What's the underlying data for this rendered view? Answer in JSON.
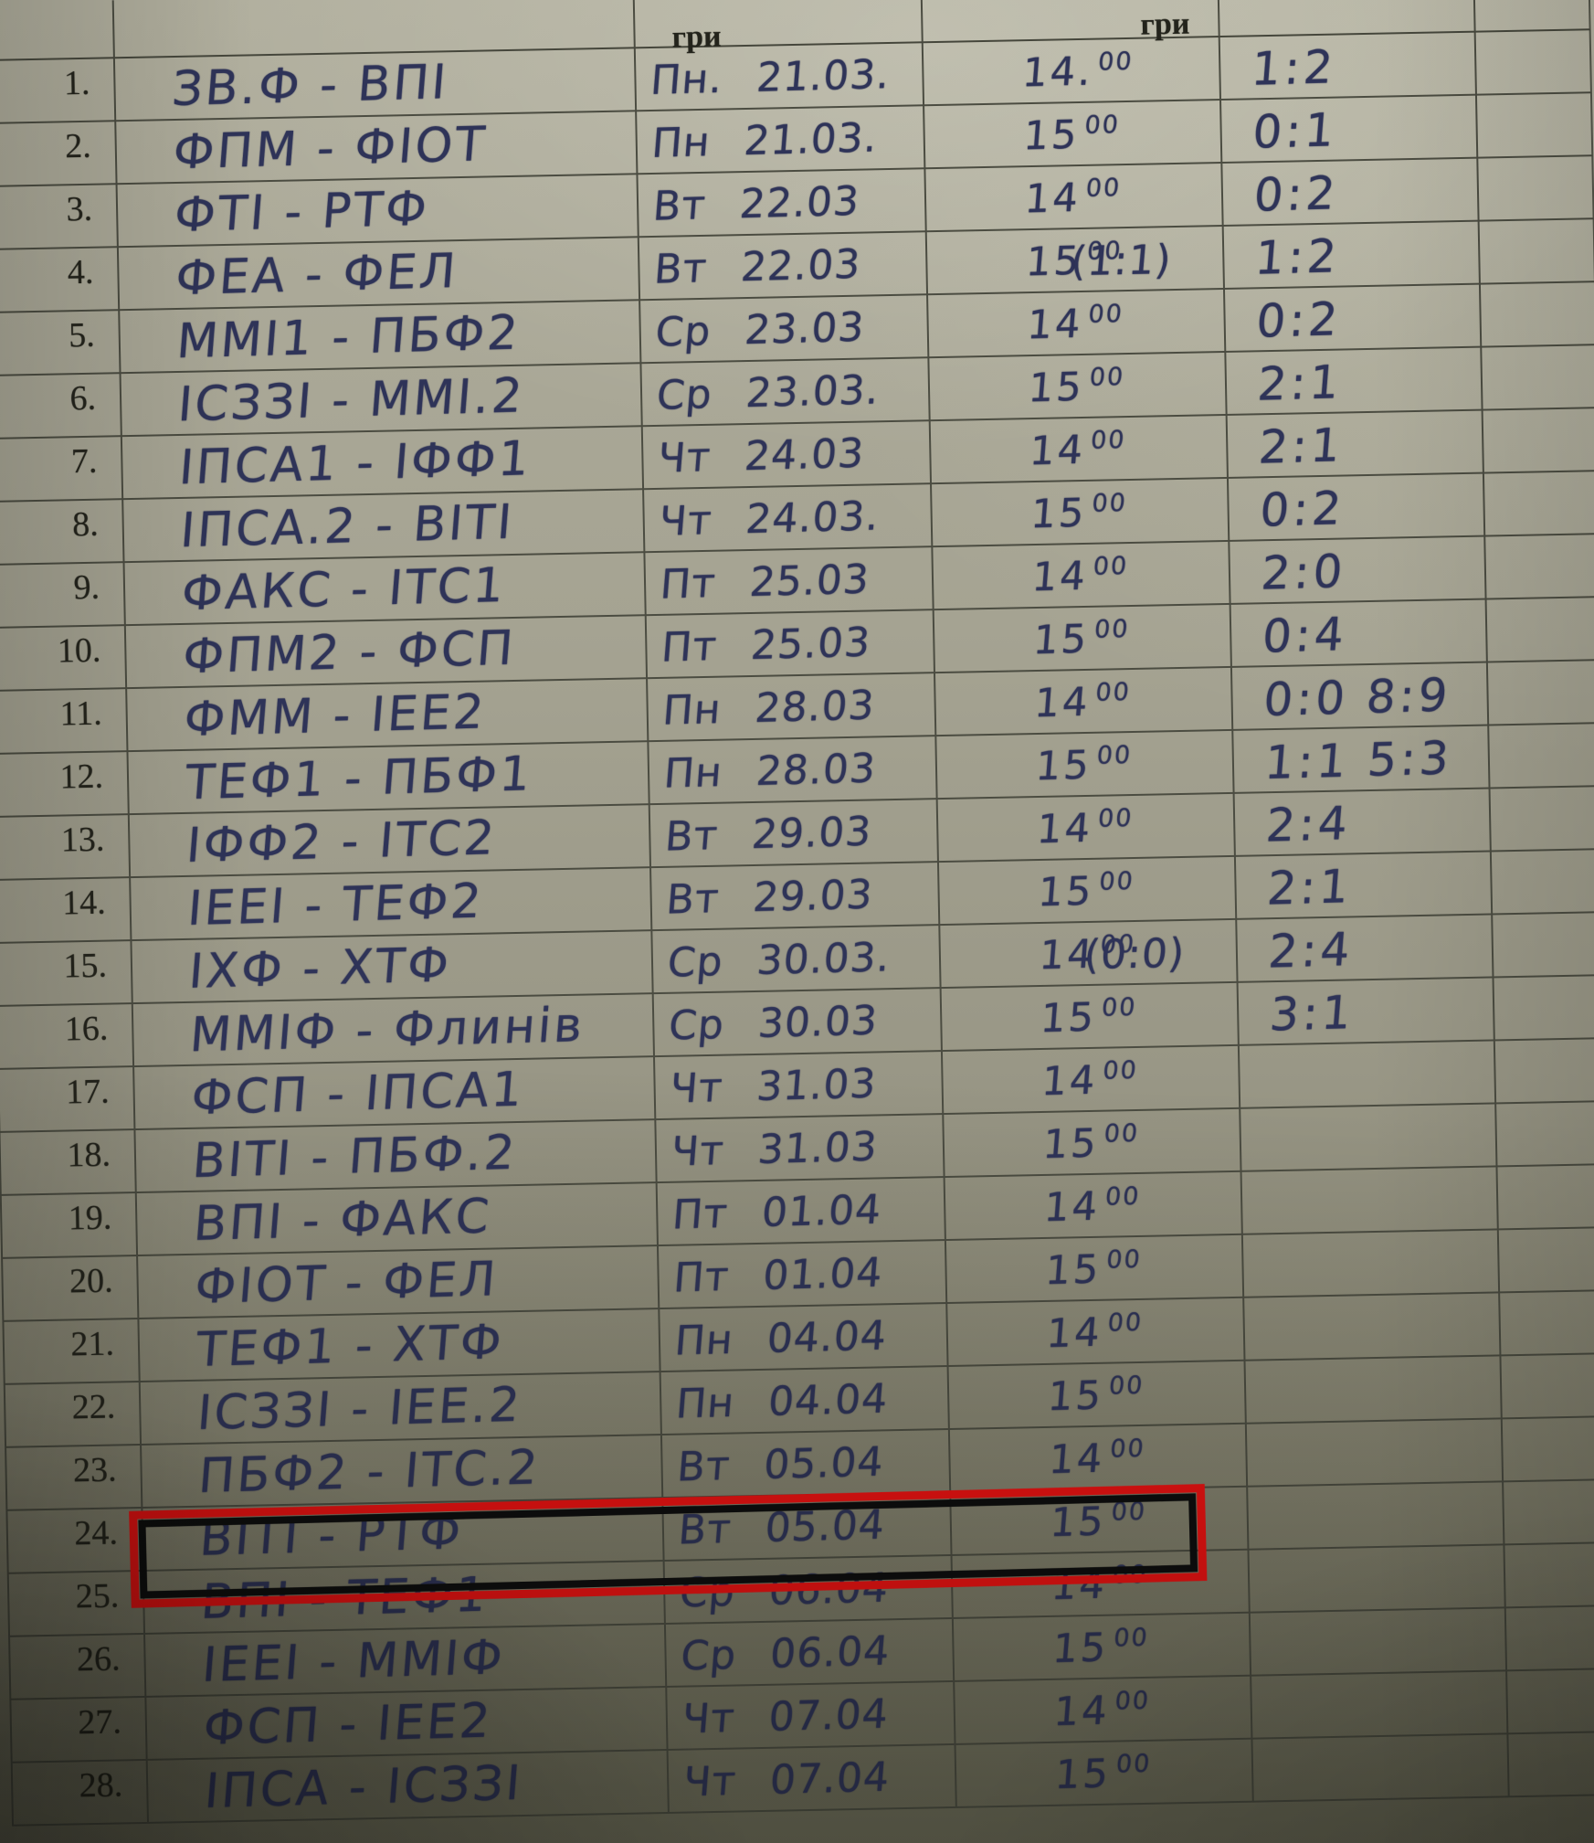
{
  "document_type": "handwritten-match-schedule-photo",
  "colors": {
    "paper": "#a5a392",
    "grid_line": "#4b4c41",
    "ink_blue": "#2e3358",
    "printed_text": "#24241c",
    "highlight_outer": "#ec1111",
    "highlight_inner": "#0d0d0d"
  },
  "table": {
    "header": {
      "date_col": "гри",
      "time_col": "гри"
    },
    "highlight": {
      "row_number": "24.",
      "style": "red outer box with black inner box"
    },
    "rows": [
      {
        "num": "1.",
        "teams": "ЗВ.Ф - ВПІ",
        "day_date": "Пн. 21.03.",
        "time": "14.",
        "time_sup": "00",
        "score": "1:2"
      },
      {
        "num": "2.",
        "teams": "ФПМ - ФІОТ",
        "day_date": "Пн 21.03.",
        "time": "15",
        "time_sup": "00",
        "score": "0:1"
      },
      {
        "num": "3.",
        "teams": "ФТІ - РТФ",
        "day_date": "Вт 22.03",
        "time": "14",
        "time_sup": "00",
        "score": "0:2"
      },
      {
        "num": "4.",
        "teams": "ФЕА - ФЕЛ",
        "day_date": "Вт 22.03",
        "time": "15",
        "time_sup": "00",
        "score_pre": "(1:1)",
        "score": "1:2"
      },
      {
        "num": "5.",
        "teams": "ММІ1 - ПБФ2",
        "day_date": "Ср 23.03",
        "time": "14",
        "time_sup": "00",
        "score": "0:2"
      },
      {
        "num": "6.",
        "teams": "ІСЗЗІ - ММІ.2",
        "day_date": "Ср 23.03.",
        "time": "15",
        "time_sup": "00",
        "score": "2:1"
      },
      {
        "num": "7.",
        "teams": "ІПСА1 - ІФФ1",
        "day_date": "Чт 24.03",
        "time": "14",
        "time_sup": "00",
        "score": "2:1"
      },
      {
        "num": "8.",
        "teams": "ІПСА.2 - ВІТІ",
        "day_date": "Чт 24.03.",
        "time": "15",
        "time_sup": "00",
        "score": "0:2"
      },
      {
        "num": "9.",
        "teams": "ФАКС - ІТС1",
        "day_date": "Пт 25.03",
        "time": "14",
        "time_sup": "00",
        "score": "2:0"
      },
      {
        "num": "10.",
        "teams": "ФПМ2 - ФСП",
        "day_date": "Пт 25.03",
        "time": "15",
        "time_sup": "00",
        "score": "0:4"
      },
      {
        "num": "11.",
        "teams": "ФММ - ІЕЕ2",
        "day_date": "Пн 28.03",
        "time": "14",
        "time_sup": "00",
        "score": "0:0 8:9"
      },
      {
        "num": "12.",
        "teams": "ТЕФ1 - ПБФ1",
        "day_date": "Пн 28.03",
        "time": "15",
        "time_sup": "00",
        "score": "1:1 5:3"
      },
      {
        "num": "13.",
        "teams": "ІФФ2 - ІТС2",
        "day_date": "Вт 29.03",
        "time": "14",
        "time_sup": "00",
        "score": "2:4"
      },
      {
        "num": "14.",
        "teams": "ІЕЕІ - ТЕФ2",
        "day_date": "Вт 29.03",
        "time": "15",
        "time_sup": "00",
        "score": "2:1"
      },
      {
        "num": "15.",
        "teams": "ІХФ - ХТФ",
        "day_date": "Ср 30.03.",
        "time": "14",
        "time_sup": "00",
        "score_pre": "(0:0)",
        "score": "2:4"
      },
      {
        "num": "16.",
        "teams": "ММІФ - Флинів",
        "day_date": "Ср 30.03",
        "time": "15",
        "time_sup": "00",
        "score": "3:1"
      },
      {
        "num": "17.",
        "teams": "ФСП - ІПСА1",
        "day_date": "Чт 31.03",
        "time": "14",
        "time_sup": "00",
        "score": ""
      },
      {
        "num": "18.",
        "teams": "ВІТІ - ПБФ.2",
        "day_date": "Чт 31.03",
        "time": "15",
        "time_sup": "00",
        "score": ""
      },
      {
        "num": "19.",
        "teams": "ВПІ - ФАКС",
        "day_date": "Пт 01.04",
        "time": "14",
        "time_sup": "00",
        "score": ""
      },
      {
        "num": "20.",
        "teams": "ФІОТ - ФЕЛ",
        "day_date": "Пт 01.04",
        "time": "15",
        "time_sup": "00",
        "score": ""
      },
      {
        "num": "21.",
        "teams": "ТЕФ1 - ХТФ",
        "day_date": "Пн 04.04",
        "time": "14",
        "time_sup": "00",
        "score": ""
      },
      {
        "num": "22.",
        "teams": "ІСЗЗІ - ІЕЕ.2",
        "day_date": "Пн 04.04",
        "time": "15",
        "time_sup": "00",
        "score": ""
      },
      {
        "num": "23.",
        "teams": "ПБФ2 - ІТС.2",
        "day_date": "Вт 05.04",
        "time": "14",
        "time_sup": "00",
        "score": ""
      },
      {
        "num": "24.",
        "teams": "ВІТІ - РТФ",
        "day_date": "Вт 05.04",
        "time": "15",
        "time_sup": "00",
        "score": "",
        "highlighted": true
      },
      {
        "num": "25.",
        "teams": "ВПІ - ТЕФ1",
        "day_date": "Ср 06.04",
        "time": "14",
        "time_sup": "00",
        "score": ""
      },
      {
        "num": "26.",
        "teams": "ІЕЕІ - ММІФ",
        "day_date": "Ср 06.04",
        "time": "15",
        "time_sup": "00",
        "score": ""
      },
      {
        "num": "27.",
        "teams": "ФСП - ІЕЕ2",
        "day_date": "Чт 07.04",
        "time": "14",
        "time_sup": "00",
        "score": ""
      },
      {
        "num": "28.",
        "teams": "ІПСА - ІСЗЗІ",
        "day_date": "Чт 07.04",
        "time": "15",
        "time_sup": "00",
        "score": ""
      }
    ]
  }
}
